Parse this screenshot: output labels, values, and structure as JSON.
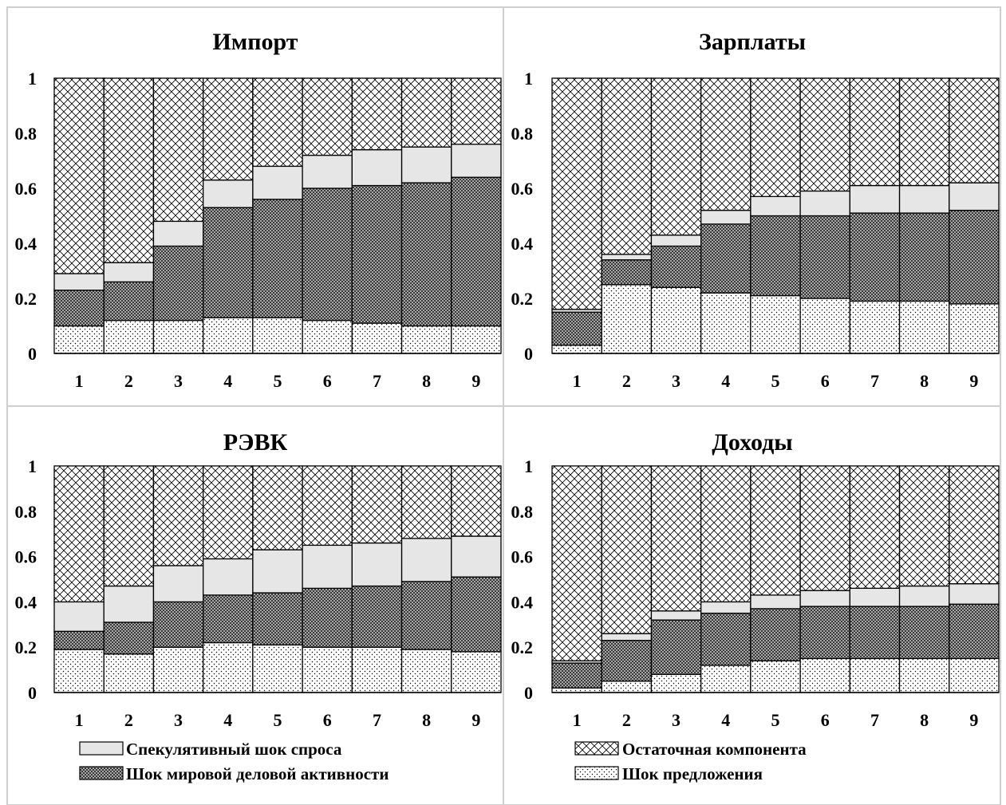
{
  "colors": {
    "supply": "#ffffff",
    "world": "#9e9e9e",
    "speculative": "#e6e6e6",
    "residual": "#ffffff",
    "frame": "#cfcfcf",
    "stroke": "#000000"
  },
  "legend": {
    "speculative": "Спекулятивный шок спроса",
    "world": "Шок мировой деловой активности",
    "residual": "Остаточная компонента",
    "supply": "Шок предложения"
  },
  "chart_data": [
    {
      "type": "bar",
      "stacked": true,
      "title": "Импорт",
      "categories": [
        "1",
        "2",
        "3",
        "4",
        "5",
        "6",
        "7",
        "8",
        "9"
      ],
      "ylim": [
        0,
        1
      ],
      "yticks": [
        "0",
        "0.2",
        "0.4",
        "0.6",
        "0.8",
        "1"
      ],
      "series": [
        {
          "name": "Шок предложения",
          "key": "supply",
          "values": [
            0.1,
            0.12,
            0.12,
            0.13,
            0.13,
            0.12,
            0.11,
            0.1,
            0.1
          ]
        },
        {
          "name": "Шок мировой деловой активности",
          "key": "world",
          "values": [
            0.13,
            0.14,
            0.27,
            0.4,
            0.43,
            0.48,
            0.5,
            0.52,
            0.54
          ]
        },
        {
          "name": "Спекулятивный шок спроса",
          "key": "speculative",
          "values": [
            0.06,
            0.07,
            0.09,
            0.1,
            0.12,
            0.12,
            0.13,
            0.13,
            0.12
          ]
        },
        {
          "name": "Остаточная компонента",
          "key": "residual",
          "values": [
            0.71,
            0.67,
            0.52,
            0.37,
            0.32,
            0.28,
            0.26,
            0.25,
            0.24
          ]
        }
      ]
    },
    {
      "type": "bar",
      "stacked": true,
      "title": "Зарплаты",
      "categories": [
        "1",
        "2",
        "3",
        "4",
        "5",
        "6",
        "7",
        "8",
        "9"
      ],
      "ylim": [
        0,
        1
      ],
      "yticks": [
        "0",
        "0.2",
        "0.4",
        "0.6",
        "0.8",
        "1"
      ],
      "series": [
        {
          "name": "Шок предложения",
          "key": "supply",
          "values": [
            0.03,
            0.25,
            0.24,
            0.22,
            0.21,
            0.2,
            0.19,
            0.19,
            0.18
          ]
        },
        {
          "name": "Шок мировой деловой активности",
          "key": "world",
          "values": [
            0.12,
            0.09,
            0.15,
            0.25,
            0.29,
            0.3,
            0.32,
            0.32,
            0.34
          ]
        },
        {
          "name": "Спекулятивный шок спроса",
          "key": "speculative",
          "values": [
            0.01,
            0.02,
            0.04,
            0.05,
            0.07,
            0.09,
            0.1,
            0.1,
            0.1
          ]
        },
        {
          "name": "Остаточная компонента",
          "key": "residual",
          "values": [
            0.84,
            0.64,
            0.57,
            0.48,
            0.43,
            0.41,
            0.39,
            0.39,
            0.38
          ]
        }
      ]
    },
    {
      "type": "bar",
      "stacked": true,
      "title": "РЭВК",
      "categories": [
        "1",
        "2",
        "3",
        "4",
        "5",
        "6",
        "7",
        "8",
        "9"
      ],
      "ylim": [
        0,
        1
      ],
      "yticks": [
        "0",
        "0.2",
        "0.4",
        "0.6",
        "0.8",
        "1"
      ],
      "series": [
        {
          "name": "Шок предложения",
          "key": "supply",
          "values": [
            0.19,
            0.17,
            0.2,
            0.22,
            0.21,
            0.2,
            0.2,
            0.19,
            0.18
          ]
        },
        {
          "name": "Шок мировой деловой активности",
          "key": "world",
          "values": [
            0.08,
            0.14,
            0.2,
            0.21,
            0.23,
            0.26,
            0.27,
            0.3,
            0.33
          ]
        },
        {
          "name": "Спекулятивный шок спроса",
          "key": "speculative",
          "values": [
            0.13,
            0.16,
            0.16,
            0.16,
            0.19,
            0.19,
            0.19,
            0.19,
            0.18
          ]
        },
        {
          "name": "Остаточная компонента",
          "key": "residual",
          "values": [
            0.6,
            0.53,
            0.44,
            0.41,
            0.37,
            0.35,
            0.34,
            0.32,
            0.31
          ]
        }
      ]
    },
    {
      "type": "bar",
      "stacked": true,
      "title": "Доходы",
      "categories": [
        "1",
        "2",
        "3",
        "4",
        "5",
        "6",
        "7",
        "8",
        "9"
      ],
      "ylim": [
        0,
        1
      ],
      "yticks": [
        "0",
        "0.2",
        "0.4",
        "0.6",
        "0.8",
        "1"
      ],
      "series": [
        {
          "name": "Шок предложения",
          "key": "supply",
          "values": [
            0.02,
            0.05,
            0.08,
            0.12,
            0.14,
            0.15,
            0.15,
            0.15,
            0.15
          ]
        },
        {
          "name": "Шок мировой деловой активности",
          "key": "world",
          "values": [
            0.11,
            0.18,
            0.24,
            0.23,
            0.23,
            0.23,
            0.23,
            0.23,
            0.24
          ]
        },
        {
          "name": "Спекулятивный шок спроса",
          "key": "speculative",
          "values": [
            0.01,
            0.03,
            0.04,
            0.05,
            0.06,
            0.07,
            0.08,
            0.09,
            0.09
          ]
        },
        {
          "name": "Остаточная компонента",
          "key": "residual",
          "values": [
            0.86,
            0.74,
            0.64,
            0.6,
            0.57,
            0.55,
            0.54,
            0.53,
            0.52
          ]
        }
      ]
    }
  ]
}
